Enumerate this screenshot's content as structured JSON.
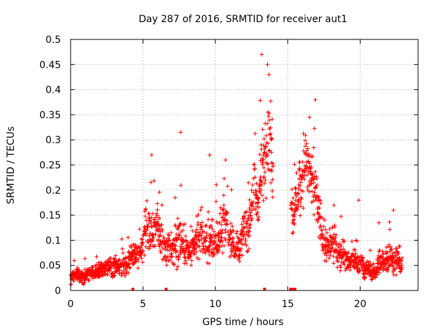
{
  "chart_data": {
    "type": "scatter",
    "title": "Day 287 of 2016, SRMTID for receiver aut1",
    "xlabel": "GPS time / hours",
    "ylabel": "SRMTID / TECUs",
    "xlim": [
      0,
      24
    ],
    "ylim": [
      0,
      0.5
    ],
    "x_ticks": [
      0,
      5,
      10,
      15,
      20
    ],
    "x_tick_labels": [
      "0",
      "5",
      "10",
      "15",
      "20"
    ],
    "y_ticks": [
      0,
      0.05,
      0.1,
      0.15,
      0.2,
      0.25,
      0.3,
      0.35,
      0.4,
      0.45,
      0.5
    ],
    "y_tick_labels": [
      "0",
      "0.05",
      "0.1",
      "0.15",
      "0.2",
      "0.25",
      "0.3",
      "0.35",
      "0.4",
      "0.45",
      "0.5"
    ],
    "grid": true,
    "marker": "+",
    "color": "#ff0000",
    "envelope": {
      "hours": [
        0,
        0.5,
        1,
        1.5,
        2,
        2.5,
        3,
        3.5,
        4,
        4.3,
        4.6,
        5,
        5.3,
        5.6,
        6,
        6.3,
        6.6,
        7,
        7.3,
        7.6,
        7.9,
        8.2,
        8.6,
        9,
        9.3,
        9.6,
        10,
        10.3,
        10.6,
        11,
        11.3,
        11.6,
        12,
        12.3,
        12.6,
        12.9,
        13.2,
        13.5,
        13.8,
        14,
        15.2,
        15.4,
        15.7,
        16,
        16.3,
        16.6,
        16.9,
        17.2,
        17.5,
        17.8,
        18.1,
        18.4,
        18.7,
        19,
        19.3,
        19.6,
        20,
        20.3,
        20.6,
        21,
        21.3,
        21.6,
        22,
        22.3,
        22.6,
        22.9
      ],
      "median": [
        0.025,
        0.03,
        0.028,
        0.032,
        0.04,
        0.045,
        0.05,
        0.048,
        0.055,
        0.08,
        0.07,
        0.09,
        0.13,
        0.11,
        0.14,
        0.1,
        0.08,
        0.085,
        0.09,
        0.1,
        0.08,
        0.075,
        0.09,
        0.12,
        0.09,
        0.1,
        0.09,
        0.11,
        0.14,
        0.1,
        0.09,
        0.08,
        0.13,
        0.12,
        0.2,
        0.17,
        0.24,
        0.28,
        0.3,
        0.22,
        0.19,
        0.15,
        0.2,
        0.24,
        0.26,
        0.22,
        0.2,
        0.14,
        0.1,
        0.08,
        0.1,
        0.08,
        0.07,
        0.065,
        0.06,
        0.055,
        0.05,
        0.045,
        0.04,
        0.035,
        0.06,
        0.055,
        0.07,
        0.06,
        0.06,
        0.055
      ],
      "spread": [
        0.02,
        0.02,
        0.02,
        0.02,
        0.02,
        0.025,
        0.03,
        0.025,
        0.03,
        0.04,
        0.035,
        0.045,
        0.06,
        0.05,
        0.06,
        0.05,
        0.04,
        0.045,
        0.06,
        0.05,
        0.04,
        0.04,
        0.05,
        0.06,
        0.05,
        0.05,
        0.05,
        0.06,
        0.07,
        0.05,
        0.05,
        0.04,
        0.06,
        0.05,
        0.08,
        0.06,
        0.09,
        0.1,
        0.09,
        0.07,
        0.06,
        0.06,
        0.08,
        0.09,
        0.09,
        0.08,
        0.07,
        0.06,
        0.05,
        0.04,
        0.05,
        0.04,
        0.035,
        0.03,
        0.03,
        0.03,
        0.03,
        0.025,
        0.02,
        0.02,
        0.03,
        0.03,
        0.035,
        0.035,
        0.035,
        0.03
      ]
    },
    "zero_value_hours": [
      4.3,
      6.6,
      13.4,
      15.2,
      15.3,
      15.5
    ],
    "notable_peaks": [
      {
        "x": 13.2,
        "y": 0.47
      },
      {
        "x": 13.6,
        "y": 0.45
      },
      {
        "x": 13.7,
        "y": 0.43
      },
      {
        "x": 16.9,
        "y": 0.38
      },
      {
        "x": 7.6,
        "y": 0.315
      },
      {
        "x": 16.5,
        "y": 0.345
      },
      {
        "x": 5.6,
        "y": 0.27
      },
      {
        "x": 10.7,
        "y": 0.26
      },
      {
        "x": 9.6,
        "y": 0.27
      },
      {
        "x": 19.9,
        "y": 0.18
      },
      {
        "x": 22.3,
        "y": 0.16
      },
      {
        "x": 21.3,
        "y": 0.135
      }
    ]
  }
}
